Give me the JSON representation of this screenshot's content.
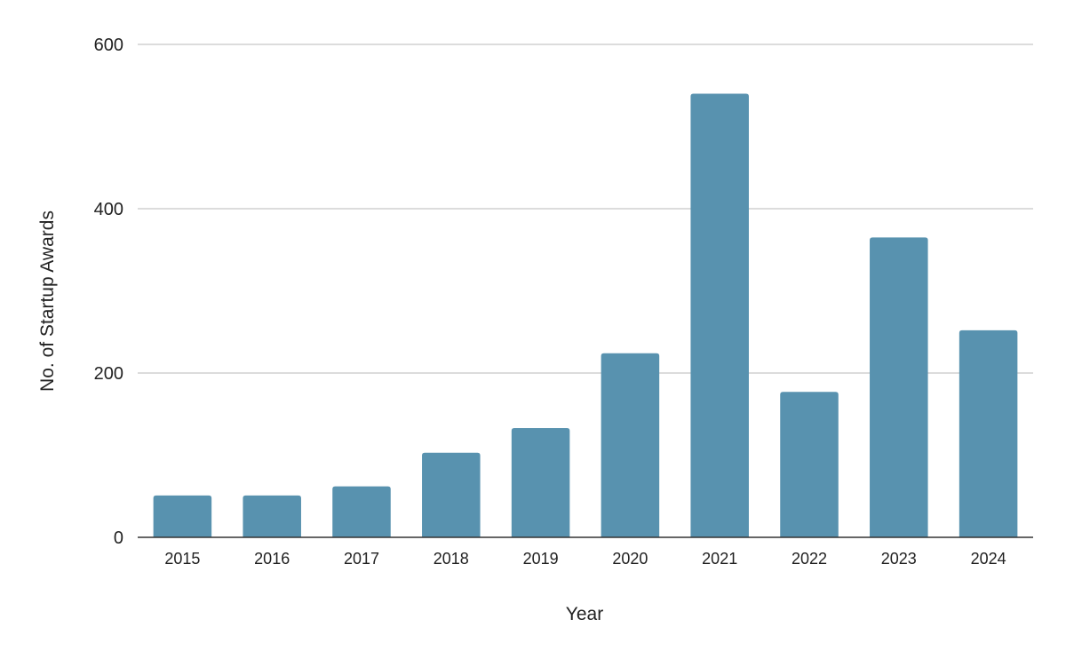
{
  "chart_data": {
    "type": "bar",
    "categories": [
      "2015",
      "2016",
      "2017",
      "2018",
      "2019",
      "2020",
      "2021",
      "2022",
      "2023",
      "2024"
    ],
    "values": [
      51,
      51,
      62,
      103,
      133,
      224,
      540,
      177,
      365,
      252
    ],
    "title": "",
    "xlabel": "Year",
    "ylabel": "No. of Startup Awards",
    "ylim": [
      0,
      600
    ],
    "yticks": [
      0,
      200,
      400,
      600
    ],
    "grid": true,
    "legend": "none",
    "bar_color": "#5892af"
  }
}
